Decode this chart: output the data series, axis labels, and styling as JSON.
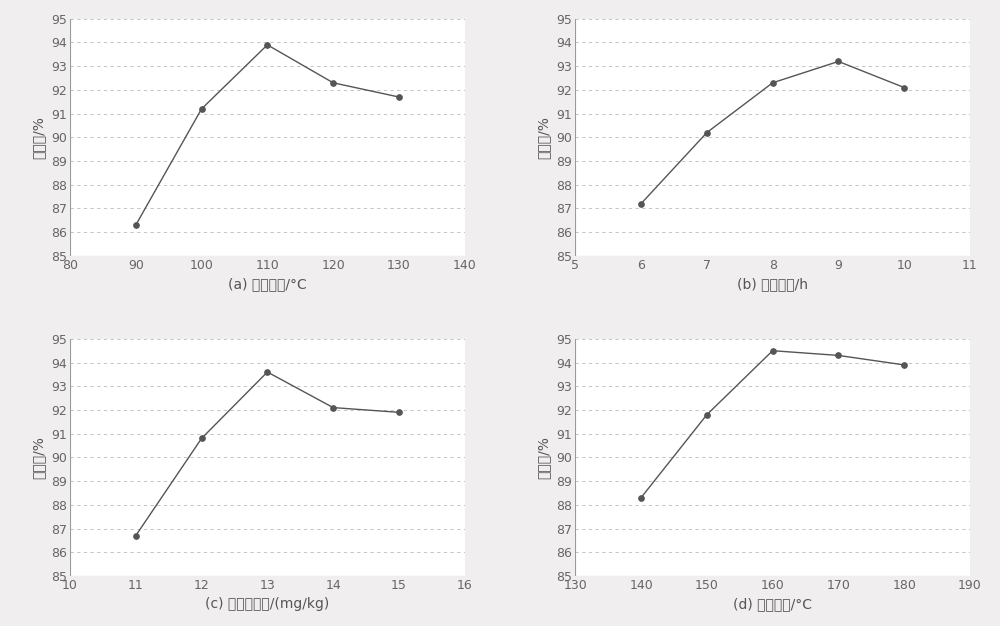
{
  "subplots": [
    {
      "label": "(a) 反应温度/°C",
      "x": [
        90,
        100,
        110,
        120,
        130
      ],
      "y": [
        86.3,
        91.2,
        93.9,
        92.3,
        91.7
      ],
      "xlim": [
        80,
        140
      ],
      "xticks": [
        80,
        90,
        100,
        110,
        120,
        130,
        140
      ],
      "ylim": [
        85,
        95
      ],
      "yticks": [
        85,
        86,
        87,
        88,
        89,
        90,
        91,
        92,
        93,
        94,
        95
      ]
    },
    {
      "label": "(b) 反应时间/h",
      "x": [
        6,
        7,
        8,
        9,
        10
      ],
      "y": [
        87.2,
        90.2,
        92.3,
        93.2,
        92.1
      ],
      "xlim": [
        5,
        11
      ],
      "xticks": [
        5,
        6,
        7,
        8,
        9,
        10,
        11
      ],
      "ylim": [
        85,
        95
      ],
      "yticks": [
        85,
        86,
        87,
        88,
        89,
        90,
        91,
        92,
        93,
        94,
        95
      ]
    },
    {
      "label": "(c) 催化剂浓度/(mg/kg)",
      "x": [
        11,
        12,
        13,
        14,
        15
      ],
      "y": [
        86.7,
        90.8,
        93.6,
        92.1,
        91.9
      ],
      "xlim": [
        10,
        16
      ],
      "xticks": [
        10,
        11,
        12,
        13,
        14,
        15,
        16
      ],
      "ylim": [
        85,
        95
      ],
      "yticks": [
        85,
        86,
        87,
        88,
        89,
        90,
        91,
        92,
        93,
        94,
        95
      ]
    },
    {
      "label": "(d) 反应温度/°C",
      "x": [
        140,
        150,
        160,
        170,
        180
      ],
      "y": [
        88.3,
        91.8,
        94.5,
        94.3,
        93.9
      ],
      "xlim": [
        130,
        190
      ],
      "xticks": [
        130,
        140,
        150,
        160,
        170,
        180,
        190
      ],
      "ylim": [
        85,
        95
      ],
      "yticks": [
        85,
        86,
        87,
        88,
        89,
        90,
        91,
        92,
        93,
        94,
        95
      ]
    }
  ],
  "ylabel": "转化率/%",
  "line_color": "#555555",
  "marker": "o",
  "marker_size": 4,
  "marker_color": "#555555",
  "bg_color": "#ffffff",
  "fig_bg_color": "#f0eeee",
  "grid_color": "#bbbbbb",
  "font_size": 10,
  "xlabel_fontsize": 10,
  "ylabel_fontsize": 10,
  "tick_fontsize": 9
}
